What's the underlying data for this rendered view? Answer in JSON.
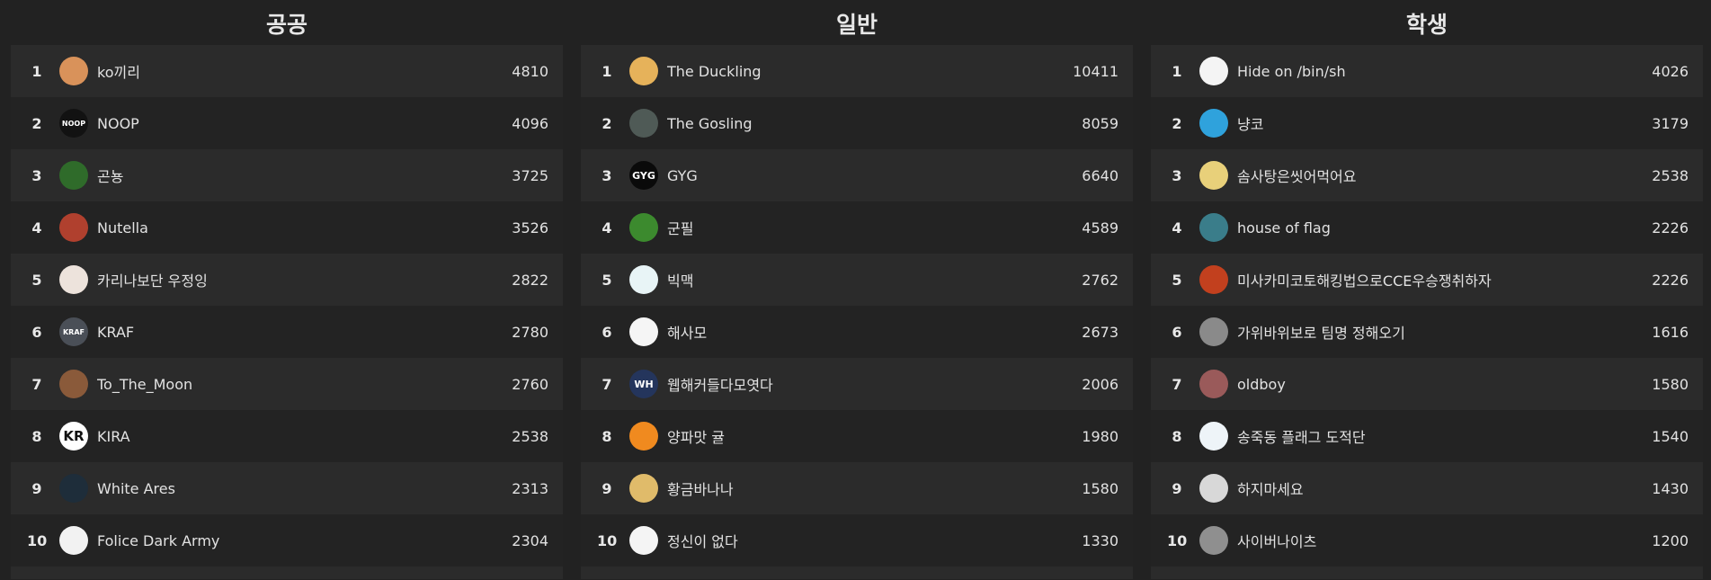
{
  "boards": [
    {
      "title": "공공",
      "rows": [
        {
          "rank": "1",
          "name": "ko끼리",
          "score": "4810",
          "avatar_color": "#d9925a",
          "avatar_text": ""
        },
        {
          "rank": "2",
          "name": "NOOP",
          "score": "4096",
          "avatar_color": "#121212",
          "avatar_text": "NOOP"
        },
        {
          "rank": "3",
          "name": "곤뇽",
          "score": "3725",
          "avatar_color": "#2f6b2a",
          "avatar_text": ""
        },
        {
          "rank": "4",
          "name": "Nutella",
          "score": "3526",
          "avatar_color": "#b0402e",
          "avatar_text": ""
        },
        {
          "rank": "5",
          "name": "카리나보단 우정잉",
          "score": "2822",
          "avatar_color": "#ede3dc",
          "avatar_text": ""
        },
        {
          "rank": "6",
          "name": "KRAF",
          "score": "2780",
          "avatar_color": "#4a4f57",
          "avatar_text": "KRAF"
        },
        {
          "rank": "7",
          "name": "To_The_Moon",
          "score": "2760",
          "avatar_color": "#8a5a3a",
          "avatar_text": ""
        },
        {
          "rank": "8",
          "name": "KIRA",
          "score": "2538",
          "avatar_color": "#ffffff",
          "avatar_text": "KR"
        },
        {
          "rank": "9",
          "name": "White Ares",
          "score": "2313",
          "avatar_color": "#1e2d3a",
          "avatar_text": ""
        },
        {
          "rank": "10",
          "name": "Folice Dark Army",
          "score": "2304",
          "avatar_color": "#f2f2f2",
          "avatar_text": ""
        }
      ]
    },
    {
      "title": "일반",
      "rows": [
        {
          "rank": "1",
          "name": "The Duckling",
          "score": "10411",
          "avatar_color": "#e6b25a",
          "avatar_text": ""
        },
        {
          "rank": "2",
          "name": "The Gosling",
          "score": "8059",
          "avatar_color": "#4f5a56",
          "avatar_text": ""
        },
        {
          "rank": "3",
          "name": "GYG",
          "score": "6640",
          "avatar_color": "#0a0a0a",
          "avatar_text": "GYG"
        },
        {
          "rank": "4",
          "name": "군필",
          "score": "4589",
          "avatar_color": "#3c8a2e",
          "avatar_text": ""
        },
        {
          "rank": "5",
          "name": "빅맥",
          "score": "2762",
          "avatar_color": "#e8f4f6",
          "avatar_text": ""
        },
        {
          "rank": "6",
          "name": "해사모",
          "score": "2673",
          "avatar_color": "#f5f5f5",
          "avatar_text": ""
        },
        {
          "rank": "7",
          "name": "웹해커들다모엿다",
          "score": "2006",
          "avatar_color": "#24355c",
          "avatar_text": "WH"
        },
        {
          "rank": "8",
          "name": "양파맛 귤",
          "score": "1980",
          "avatar_color": "#f08a1f",
          "avatar_text": ""
        },
        {
          "rank": "9",
          "name": "황금바나나",
          "score": "1580",
          "avatar_color": "#e0bb6a",
          "avatar_text": ""
        },
        {
          "rank": "10",
          "name": "정신이 없다",
          "score": "1330",
          "avatar_color": "#f4f4f4",
          "avatar_text": ""
        }
      ]
    },
    {
      "title": "학생",
      "rows": [
        {
          "rank": "1",
          "name": "Hide on /bin/sh",
          "score": "4026",
          "avatar_color": "#f4f4f4",
          "avatar_text": ""
        },
        {
          "rank": "2",
          "name": "냥코",
          "score": "3179",
          "avatar_color": "#2fa2dc",
          "avatar_text": ""
        },
        {
          "rank": "3",
          "name": "솜사탕은씻어먹어요",
          "score": "2538",
          "avatar_color": "#e8d07a",
          "avatar_text": ""
        },
        {
          "rank": "4",
          "name": "house of flag",
          "score": "2226",
          "avatar_color": "#3a7d8a",
          "avatar_text": ""
        },
        {
          "rank": "5",
          "name": "미사카미코토해킹법으로CCE우승쟁취하자",
          "score": "2226",
          "avatar_color": "#c2401e",
          "avatar_text": ""
        },
        {
          "rank": "6",
          "name": "가위바위보로 팀명 정해오기",
          "score": "1616",
          "avatar_color": "#8a8a8a",
          "avatar_text": ""
        },
        {
          "rank": "7",
          "name": "oldboy",
          "score": "1580",
          "avatar_color": "#9a5a5a",
          "avatar_text": ""
        },
        {
          "rank": "8",
          "name": "송죽동 플래그 도적단",
          "score": "1540",
          "avatar_color": "#eef4f8",
          "avatar_text": ""
        },
        {
          "rank": "9",
          "name": "하지마세요",
          "score": "1430",
          "avatar_color": "#d8d8d8",
          "avatar_text": ""
        },
        {
          "rank": "10",
          "name": "사이버나이츠",
          "score": "1200",
          "avatar_color": "#8f8f8f",
          "avatar_text": ""
        }
      ]
    }
  ]
}
